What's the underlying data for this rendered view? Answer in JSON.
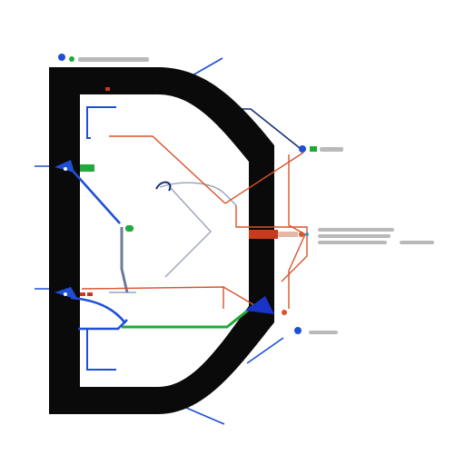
{
  "colors": {
    "frame": "#0a0a0a",
    "blue": "#1f4fd6",
    "navy": "#1a2f7a",
    "green": "#1faa3a",
    "orange": "#d9532b",
    "rust": "#c63a1e",
    "slate": "#7d8aa8",
    "text": "#b8b8b8"
  },
  "icons": [
    "blue-dot-icon",
    "green-dot-icon",
    "blue-arrow-icon",
    "orange-dot-icon"
  ]
}
